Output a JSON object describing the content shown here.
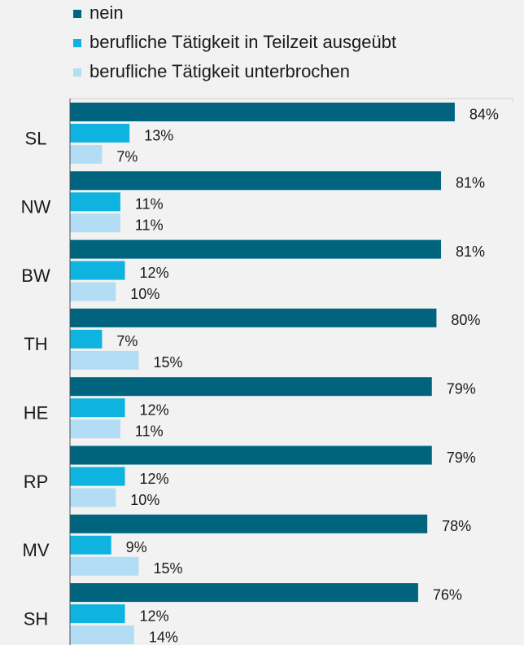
{
  "chart_data": {
    "type": "bar",
    "orientation": "horizontal",
    "categories": [
      "SL",
      "NW",
      "BW",
      "TH",
      "HE",
      "RP",
      "MV",
      "SH"
    ],
    "series": [
      {
        "name": "nein",
        "color": "#00647f",
        "values": [
          84,
          81,
          81,
          80,
          79,
          79,
          78,
          76
        ],
        "value_labels": [
          "84%",
          "81%",
          "81%",
          "80%",
          "79%",
          "79%",
          "78%",
          "76%"
        ]
      },
      {
        "name": "berufliche Tätigkeit in Teilzeit ausgeübt",
        "color": "#0fb3e0",
        "values": [
          13,
          11,
          12,
          7,
          12,
          12,
          9,
          12
        ],
        "value_labels": [
          "13%",
          "11%",
          "12%",
          "7%",
          "12%",
          "12%",
          "9%",
          "12%"
        ]
      },
      {
        "name": "berufliche Tätigkeit unterbrochen",
        "color": "#b3ddf5",
        "values": [
          7,
          11,
          10,
          15,
          11,
          10,
          15,
          14
        ],
        "value_labels": [
          "7%",
          "11%",
          "10%",
          "15%",
          "11%",
          "10%",
          "15%",
          "14%"
        ]
      }
    ],
    "legend": "top-left"
  }
}
